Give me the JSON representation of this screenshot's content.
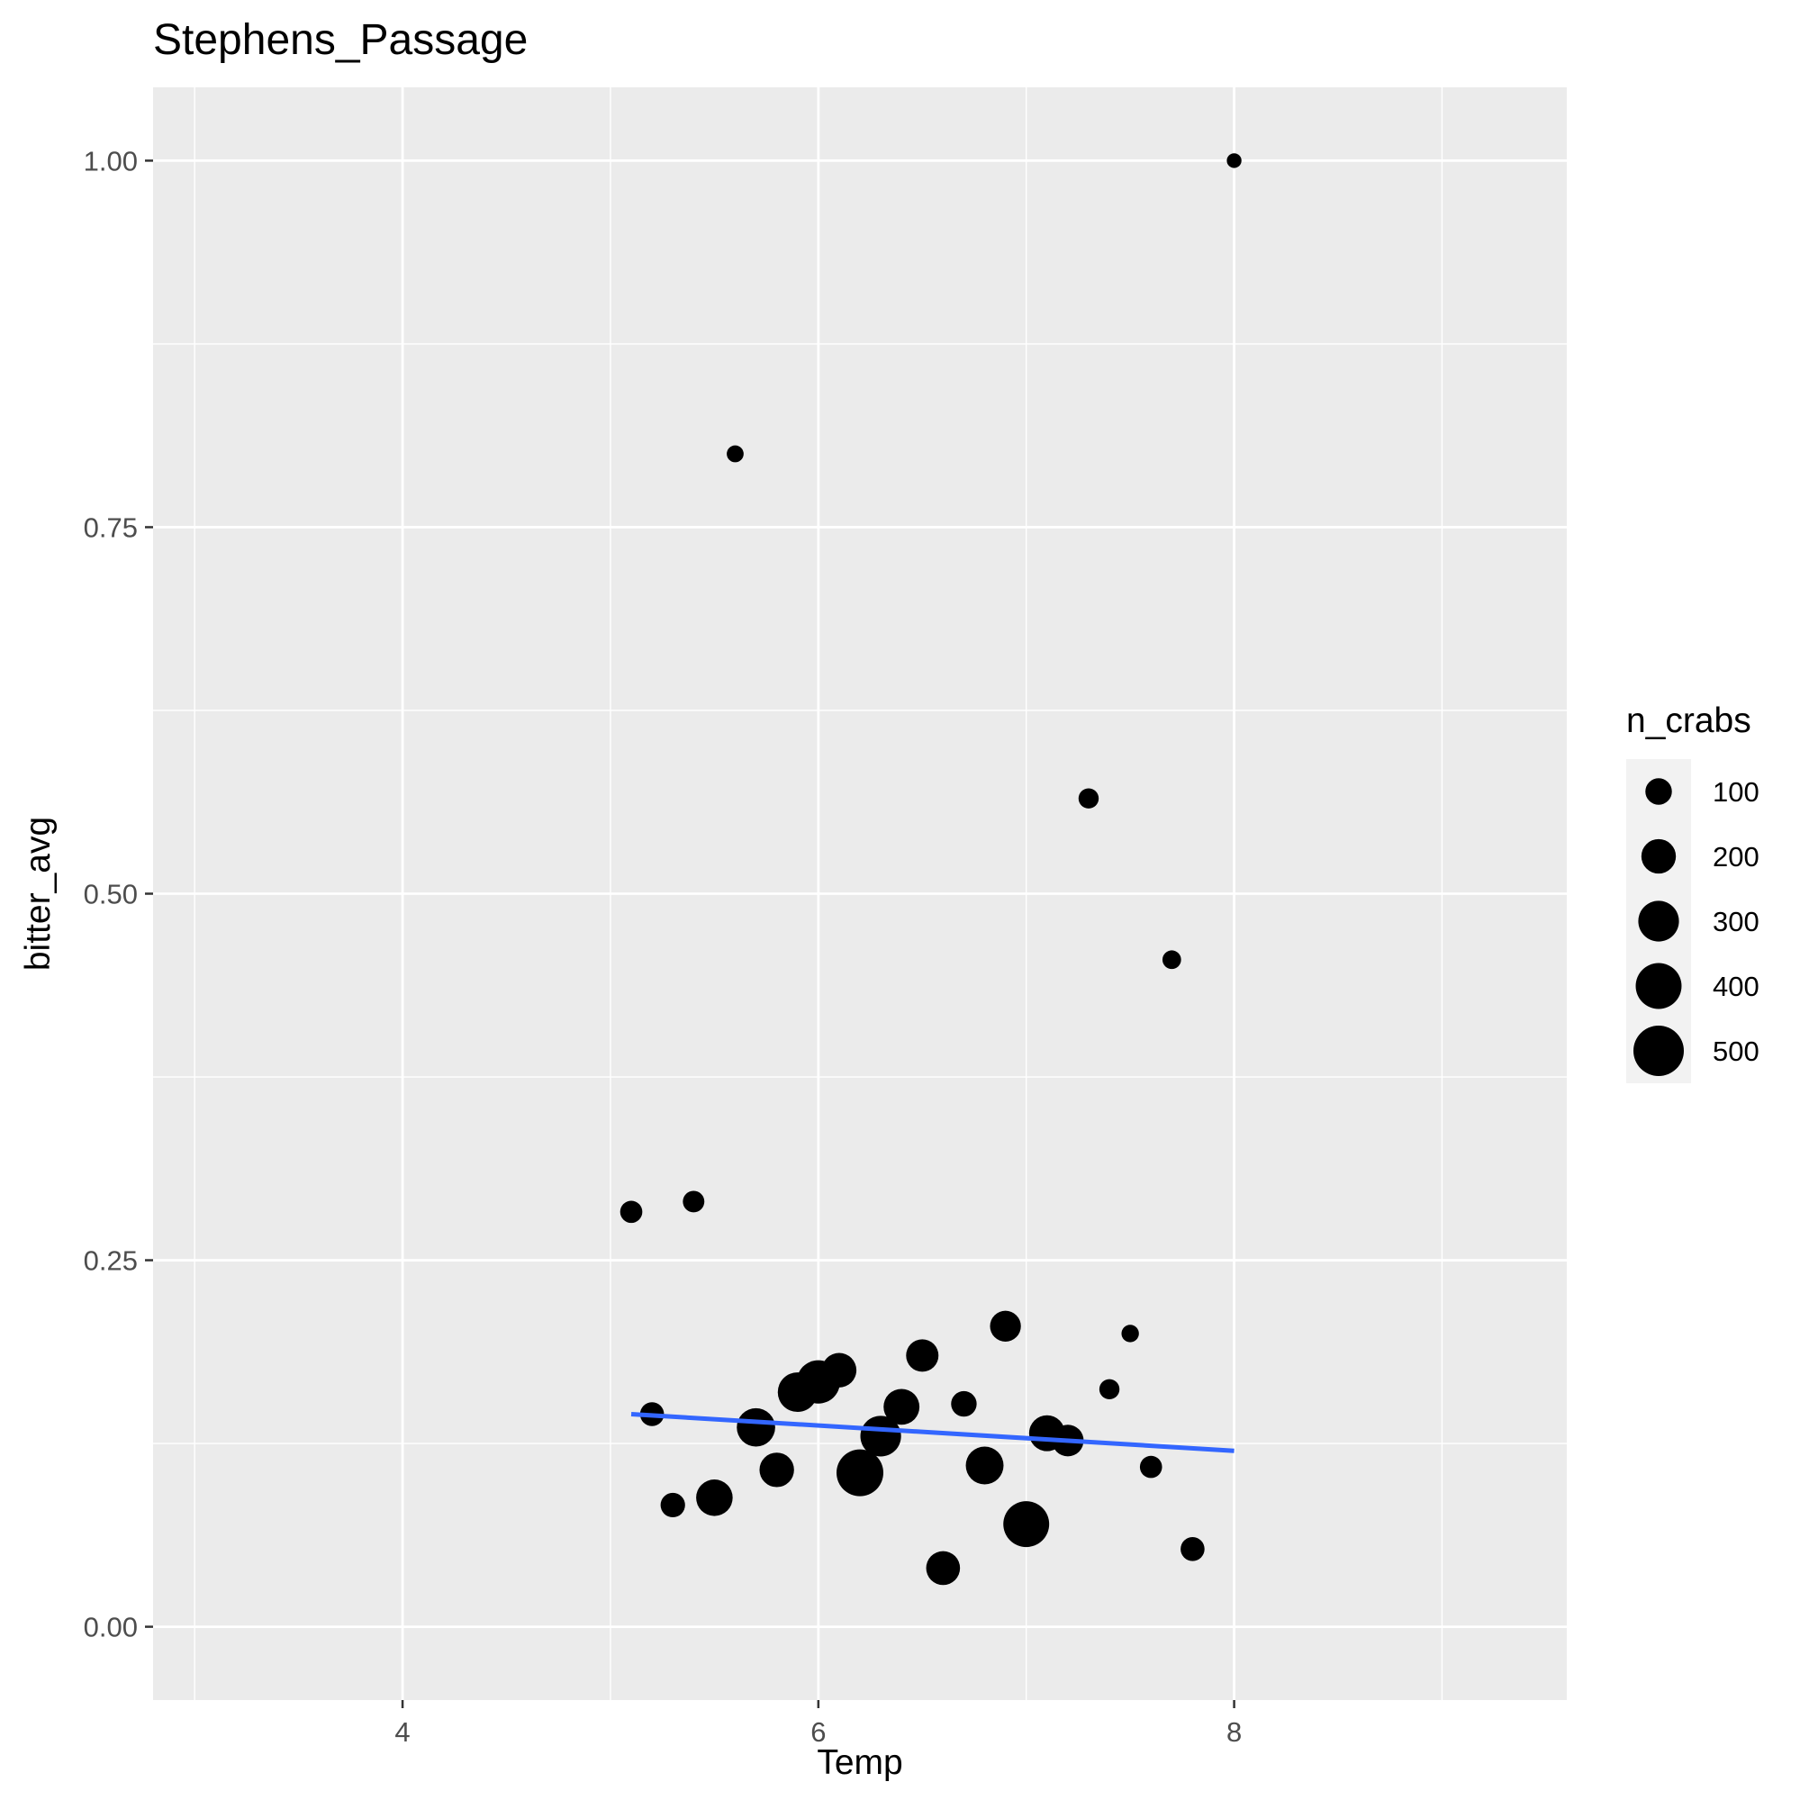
{
  "chart_data": {
    "type": "scatter",
    "title": "Stephens_Passage",
    "xlabel": "Temp",
    "ylabel": "bitter_avg",
    "xlim": [
      2.8,
      9.6
    ],
    "ylim": [
      -0.05,
      1.05
    ],
    "x_ticks": [
      4,
      6,
      8
    ],
    "x_tick_labels": [
      "4",
      "6",
      "8"
    ],
    "x_minor_ticks": [
      3,
      5,
      7,
      9
    ],
    "y_ticks": [
      0,
      0.25,
      0.5,
      0.75,
      1.0
    ],
    "y_tick_labels": [
      "0.00",
      "0.25",
      "0.50",
      "0.75",
      "1.00"
    ],
    "y_minor_ticks": [
      0.125,
      0.375,
      0.625,
      0.875
    ],
    "grid": true,
    "colors": {
      "panel": "#ebebeb",
      "grid": "#ffffff",
      "points": "#000000",
      "trend": "#3366ff"
    },
    "size_variable": "n_crabs",
    "legend": {
      "title": "n_crabs",
      "placement": "right",
      "entries": [
        {
          "label": "100",
          "value": 100
        },
        {
          "label": "200",
          "value": 200
        },
        {
          "label": "300",
          "value": 300
        },
        {
          "label": "400",
          "value": 400
        },
        {
          "label": "500",
          "value": 500
        }
      ]
    },
    "points": [
      {
        "x": 8.0,
        "y": 1.0,
        "n_crabs": 15
      },
      {
        "x": 5.6,
        "y": 0.8,
        "n_crabs": 25
      },
      {
        "x": 7.3,
        "y": 0.565,
        "n_crabs": 45
      },
      {
        "x": 7.7,
        "y": 0.455,
        "n_crabs": 35
      },
      {
        "x": 5.1,
        "y": 0.283,
        "n_crabs": 60
      },
      {
        "x": 5.4,
        "y": 0.29,
        "n_crabs": 55
      },
      {
        "x": 6.9,
        "y": 0.205,
        "n_crabs": 150
      },
      {
        "x": 7.5,
        "y": 0.2,
        "n_crabs": 28
      },
      {
        "x": 6.5,
        "y": 0.185,
        "n_crabs": 170
      },
      {
        "x": 6.1,
        "y": 0.175,
        "n_crabs": 200
      },
      {
        "x": 6.0,
        "y": 0.167,
        "n_crabs": 350
      },
      {
        "x": 5.9,
        "y": 0.16,
        "n_crabs": 280
      },
      {
        "x": 7.4,
        "y": 0.162,
        "n_crabs": 45
      },
      {
        "x": 6.4,
        "y": 0.15,
        "n_crabs": 220
      },
      {
        "x": 6.7,
        "y": 0.152,
        "n_crabs": 90
      },
      {
        "x": 5.2,
        "y": 0.145,
        "n_crabs": 75
      },
      {
        "x": 5.7,
        "y": 0.136,
        "n_crabs": 260
      },
      {
        "x": 6.3,
        "y": 0.13,
        "n_crabs": 300
      },
      {
        "x": 7.1,
        "y": 0.132,
        "n_crabs": 220
      },
      {
        "x": 7.2,
        "y": 0.127,
        "n_crabs": 160
      },
      {
        "x": 6.8,
        "y": 0.11,
        "n_crabs": 250
      },
      {
        "x": 5.8,
        "y": 0.107,
        "n_crabs": 200
      },
      {
        "x": 6.2,
        "y": 0.105,
        "n_crabs": 420
      },
      {
        "x": 7.6,
        "y": 0.109,
        "n_crabs": 60
      },
      {
        "x": 5.5,
        "y": 0.088,
        "n_crabs": 230
      },
      {
        "x": 5.3,
        "y": 0.083,
        "n_crabs": 80
      },
      {
        "x": 7.0,
        "y": 0.07,
        "n_crabs": 400
      },
      {
        "x": 7.8,
        "y": 0.053,
        "n_crabs": 75
      },
      {
        "x": 6.6,
        "y": 0.04,
        "n_crabs": 190
      }
    ],
    "trend_line": {
      "x": [
        5.1,
        8.0
      ],
      "y": [
        0.145,
        0.12
      ]
    }
  }
}
